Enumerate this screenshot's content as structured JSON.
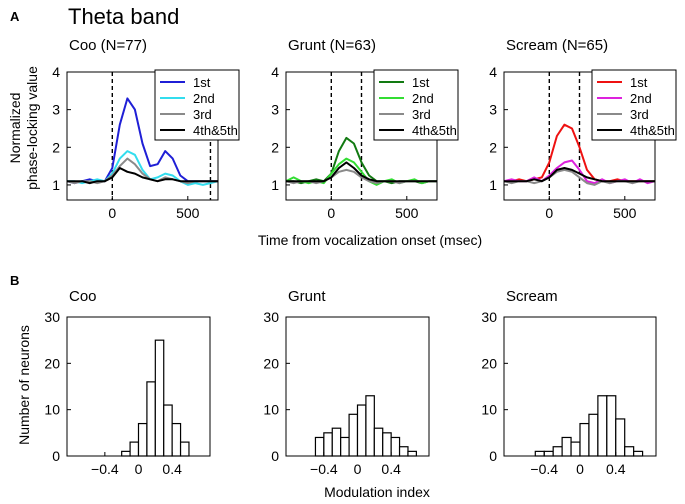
{
  "figure": {
    "panel_a_letter": "A",
    "panel_b_letter": "B",
    "panel_a_title": "Theta band",
    "panel_a_ylabel_line1": "Normalized",
    "panel_a_ylabel_line2": "phase-locking value",
    "panel_a_xlabel": "Time from vocalization onset (msec)",
    "panel_b_ylabel": "Number of neurons",
    "panel_b_xlabel": "Modulation index"
  },
  "chart_data": [
    {
      "type": "line",
      "title": "Coo (N=77)",
      "ylim": [
        0.6,
        4
      ],
      "xlim": [
        -300,
        700
      ],
      "yticks": [
        "1",
        "2",
        "3",
        "4"
      ],
      "xticks": [
        "0",
        "500"
      ],
      "vlines": [
        0,
        650
      ],
      "legend": [
        "1st",
        "2nd",
        "3rd",
        "4th&5th"
      ],
      "colors": [
        "#1f1fd6",
        "#33ddee",
        "#8a8a8a",
        "#000000"
      ],
      "series": [
        {
          "name": "1st",
          "x": [
            -300,
            -250,
            -200,
            -150,
            -100,
            -50,
            0,
            50,
            100,
            150,
            200,
            250,
            300,
            350,
            400,
            450,
            500,
            550,
            600,
            650,
            700
          ],
          "values": [
            1.1,
            1.05,
            1.1,
            1.15,
            1.1,
            1.1,
            1.45,
            2.6,
            3.3,
            3.0,
            2.1,
            1.5,
            1.55,
            1.9,
            1.7,
            1.25,
            1.1,
            1.1,
            1.1,
            1.1,
            1.1
          ]
        },
        {
          "name": "2nd",
          "x": [
            -300,
            -250,
            -200,
            -150,
            -100,
            -50,
            0,
            50,
            100,
            150,
            200,
            250,
            300,
            350,
            400,
            450,
            500,
            550,
            600,
            650,
            700
          ],
          "values": [
            1.1,
            1.1,
            1.05,
            1.1,
            1.15,
            1.1,
            1.3,
            1.7,
            1.9,
            1.8,
            1.4,
            1.15,
            1.2,
            1.3,
            1.25,
            1.1,
            1.0,
            1.05,
            1.0,
            1.05,
            1.1
          ]
        },
        {
          "name": "3rd",
          "x": [
            -300,
            -250,
            -200,
            -150,
            -100,
            -50,
            0,
            50,
            100,
            150,
            200,
            250,
            300,
            350,
            400,
            450,
            500,
            550,
            600,
            650,
            700
          ],
          "values": [
            1.1,
            1.05,
            1.1,
            1.1,
            1.05,
            1.1,
            1.25,
            1.5,
            1.7,
            1.55,
            1.3,
            1.15,
            1.1,
            1.2,
            1.15,
            1.1,
            1.05,
            1.1,
            1.1,
            1.1,
            1.1
          ]
        },
        {
          "name": "4th&5th",
          "x": [
            -300,
            -250,
            -200,
            -150,
            -100,
            -50,
            0,
            50,
            100,
            150,
            200,
            250,
            300,
            350,
            400,
            450,
            500,
            550,
            600,
            650,
            700
          ],
          "values": [
            1.1,
            1.1,
            1.1,
            1.05,
            1.1,
            1.1,
            1.2,
            1.45,
            1.35,
            1.3,
            1.2,
            1.15,
            1.1,
            1.15,
            1.15,
            1.1,
            1.1,
            1.1,
            1.1,
            1.1,
            1.1
          ]
        }
      ]
    },
    {
      "type": "line",
      "title": "Grunt (N=63)",
      "ylim": [
        0.6,
        4
      ],
      "xlim": [
        -300,
        700
      ],
      "yticks": [
        "1",
        "2",
        "3",
        "4"
      ],
      "xticks": [
        "0",
        "500"
      ],
      "vlines": [
        0,
        200
      ],
      "legend": [
        "1st",
        "2nd",
        "3rd",
        "4th&5th"
      ],
      "colors": [
        "#127a12",
        "#33dd33",
        "#8a8a8a",
        "#000000"
      ],
      "series": [
        {
          "name": "1st",
          "x": [
            -300,
            -250,
            -200,
            -150,
            -100,
            -50,
            0,
            50,
            100,
            150,
            200,
            250,
            300,
            350,
            400,
            450,
            500,
            550,
            600,
            650,
            700
          ],
          "values": [
            1.1,
            1.1,
            1.05,
            1.1,
            1.15,
            1.1,
            1.3,
            1.9,
            2.25,
            2.1,
            1.6,
            1.25,
            1.1,
            1.1,
            1.05,
            1.1,
            1.1,
            1.1,
            1.05,
            1.1,
            1.1
          ]
        },
        {
          "name": "2nd",
          "x": [
            -300,
            -250,
            -200,
            -150,
            -100,
            -50,
            0,
            50,
            100,
            150,
            200,
            250,
            300,
            350,
            400,
            450,
            500,
            550,
            600,
            650,
            700
          ],
          "values": [
            1.1,
            1.2,
            1.1,
            1.05,
            1.1,
            1.05,
            1.3,
            1.55,
            1.7,
            1.6,
            1.35,
            1.1,
            1.0,
            1.1,
            1.15,
            1.05,
            1.1,
            1.15,
            1.05,
            1.1,
            1.1
          ]
        },
        {
          "name": "3rd",
          "x": [
            -300,
            -250,
            -200,
            -150,
            -100,
            -50,
            0,
            50,
            100,
            150,
            200,
            250,
            300,
            350,
            400,
            450,
            500,
            550,
            600,
            650,
            700
          ],
          "values": [
            1.1,
            1.05,
            1.1,
            1.1,
            1.05,
            1.1,
            1.2,
            1.35,
            1.4,
            1.35,
            1.2,
            1.1,
            1.05,
            1.1,
            1.1,
            1.05,
            1.1,
            1.1,
            1.1,
            1.1,
            1.1
          ]
        },
        {
          "name": "4th&5th",
          "x": [
            -300,
            -250,
            -200,
            -150,
            -100,
            -50,
            0,
            50,
            100,
            150,
            200,
            250,
            300,
            350,
            400,
            450,
            500,
            550,
            600,
            650,
            700
          ],
          "values": [
            1.1,
            1.1,
            1.1,
            1.1,
            1.1,
            1.1,
            1.2,
            1.45,
            1.6,
            1.45,
            1.25,
            1.15,
            1.1,
            1.1,
            1.1,
            1.1,
            1.1,
            1.1,
            1.1,
            1.1,
            1.1
          ]
        }
      ]
    },
    {
      "type": "line",
      "title": "Scream (N=65)",
      "ylim": [
        0.6,
        4
      ],
      "xlim": [
        -300,
        700
      ],
      "yticks": [
        "1",
        "2",
        "3",
        "4"
      ],
      "xticks": [
        "0",
        "500"
      ],
      "vlines": [
        0,
        200
      ],
      "legend": [
        "1st",
        "2nd",
        "3rd",
        "4th&5th"
      ],
      "colors": [
        "#ee1111",
        "#dd22dd",
        "#8a8a8a",
        "#000000"
      ],
      "series": [
        {
          "name": "1st",
          "x": [
            -300,
            -250,
            -200,
            -150,
            -100,
            -50,
            0,
            50,
            100,
            150,
            200,
            250,
            300,
            350,
            400,
            450,
            500,
            550,
            600,
            650,
            700
          ],
          "values": [
            1.1,
            1.1,
            1.15,
            1.1,
            1.15,
            1.2,
            1.6,
            2.3,
            2.6,
            2.5,
            2.0,
            1.4,
            1.15,
            1.1,
            1.1,
            1.15,
            1.1,
            1.1,
            1.1,
            1.1,
            1.1
          ]
        },
        {
          "name": "2nd",
          "x": [
            -300,
            -250,
            -200,
            -150,
            -100,
            -50,
            0,
            50,
            100,
            150,
            200,
            250,
            300,
            350,
            400,
            450,
            500,
            550,
            600,
            650,
            700
          ],
          "values": [
            1.1,
            1.15,
            1.1,
            1.1,
            1.2,
            1.1,
            1.25,
            1.45,
            1.6,
            1.65,
            1.4,
            1.1,
            1.05,
            1.15,
            1.05,
            1.1,
            1.15,
            1.05,
            1.15,
            1.05,
            1.1
          ]
        },
        {
          "name": "3rd",
          "x": [
            -300,
            -250,
            -200,
            -150,
            -100,
            -50,
            0,
            50,
            100,
            150,
            200,
            250,
            300,
            350,
            400,
            450,
            500,
            550,
            600,
            650,
            700
          ],
          "values": [
            1.1,
            1.05,
            1.1,
            1.1,
            1.05,
            1.1,
            1.2,
            1.35,
            1.4,
            1.35,
            1.2,
            1.05,
            1.0,
            1.1,
            1.05,
            1.1,
            1.1,
            1.05,
            1.1,
            1.1,
            1.1
          ]
        },
        {
          "name": "4th&5th",
          "x": [
            -300,
            -250,
            -200,
            -150,
            -100,
            -50,
            0,
            50,
            100,
            150,
            200,
            250,
            300,
            350,
            400,
            450,
            500,
            550,
            600,
            650,
            700
          ],
          "values": [
            1.1,
            1.1,
            1.1,
            1.1,
            1.15,
            1.1,
            1.2,
            1.4,
            1.45,
            1.4,
            1.3,
            1.2,
            1.15,
            1.1,
            1.1,
            1.1,
            1.1,
            1.1,
            1.1,
            1.1,
            1.1
          ]
        }
      ]
    },
    {
      "type": "bar",
      "title": "Coo",
      "xlim": [
        -0.85,
        0.85
      ],
      "ylim": [
        0,
        30
      ],
      "yticks": [
        "0",
        "10",
        "20",
        "30"
      ],
      "xticks": [
        "−0.4",
        "0",
        "0.4"
      ],
      "bin_width": 0.1,
      "bin_centers": [
        -0.15,
        -0.05,
        0.05,
        0.15,
        0.25,
        0.35,
        0.45,
        0.55
      ],
      "values": [
        1,
        3,
        7,
        16,
        25,
        11,
        7,
        3
      ]
    },
    {
      "type": "bar",
      "title": "Grunt",
      "xlim": [
        -0.85,
        0.85
      ],
      "ylim": [
        0,
        30
      ],
      "yticks": [
        "0",
        "10",
        "20",
        "30"
      ],
      "xticks": [
        "−0.4",
        "0",
        "0.4"
      ],
      "bin_width": 0.1,
      "bin_centers": [
        -0.45,
        -0.35,
        -0.25,
        -0.15,
        -0.05,
        0.05,
        0.15,
        0.25,
        0.35,
        0.45,
        0.55,
        0.65
      ],
      "values": [
        4,
        5,
        6,
        4,
        9,
        11,
        13,
        6,
        5,
        4,
        2,
        1
      ]
    },
    {
      "type": "bar",
      "title": "Scream",
      "xlim": [
        -0.85,
        0.85
      ],
      "ylim": [
        0,
        30
      ],
      "yticks": [
        "0",
        "10",
        "20",
        "30"
      ],
      "xticks": [
        "−0.4",
        "0",
        "0.4"
      ],
      "bin_width": 0.1,
      "bin_centers": [
        -0.45,
        -0.35,
        -0.25,
        -0.15,
        -0.05,
        0.05,
        0.15,
        0.25,
        0.35,
        0.45,
        0.55,
        0.65
      ],
      "values": [
        1,
        1,
        2,
        4,
        3,
        7,
        9,
        13,
        13,
        8,
        2,
        1
      ]
    }
  ]
}
